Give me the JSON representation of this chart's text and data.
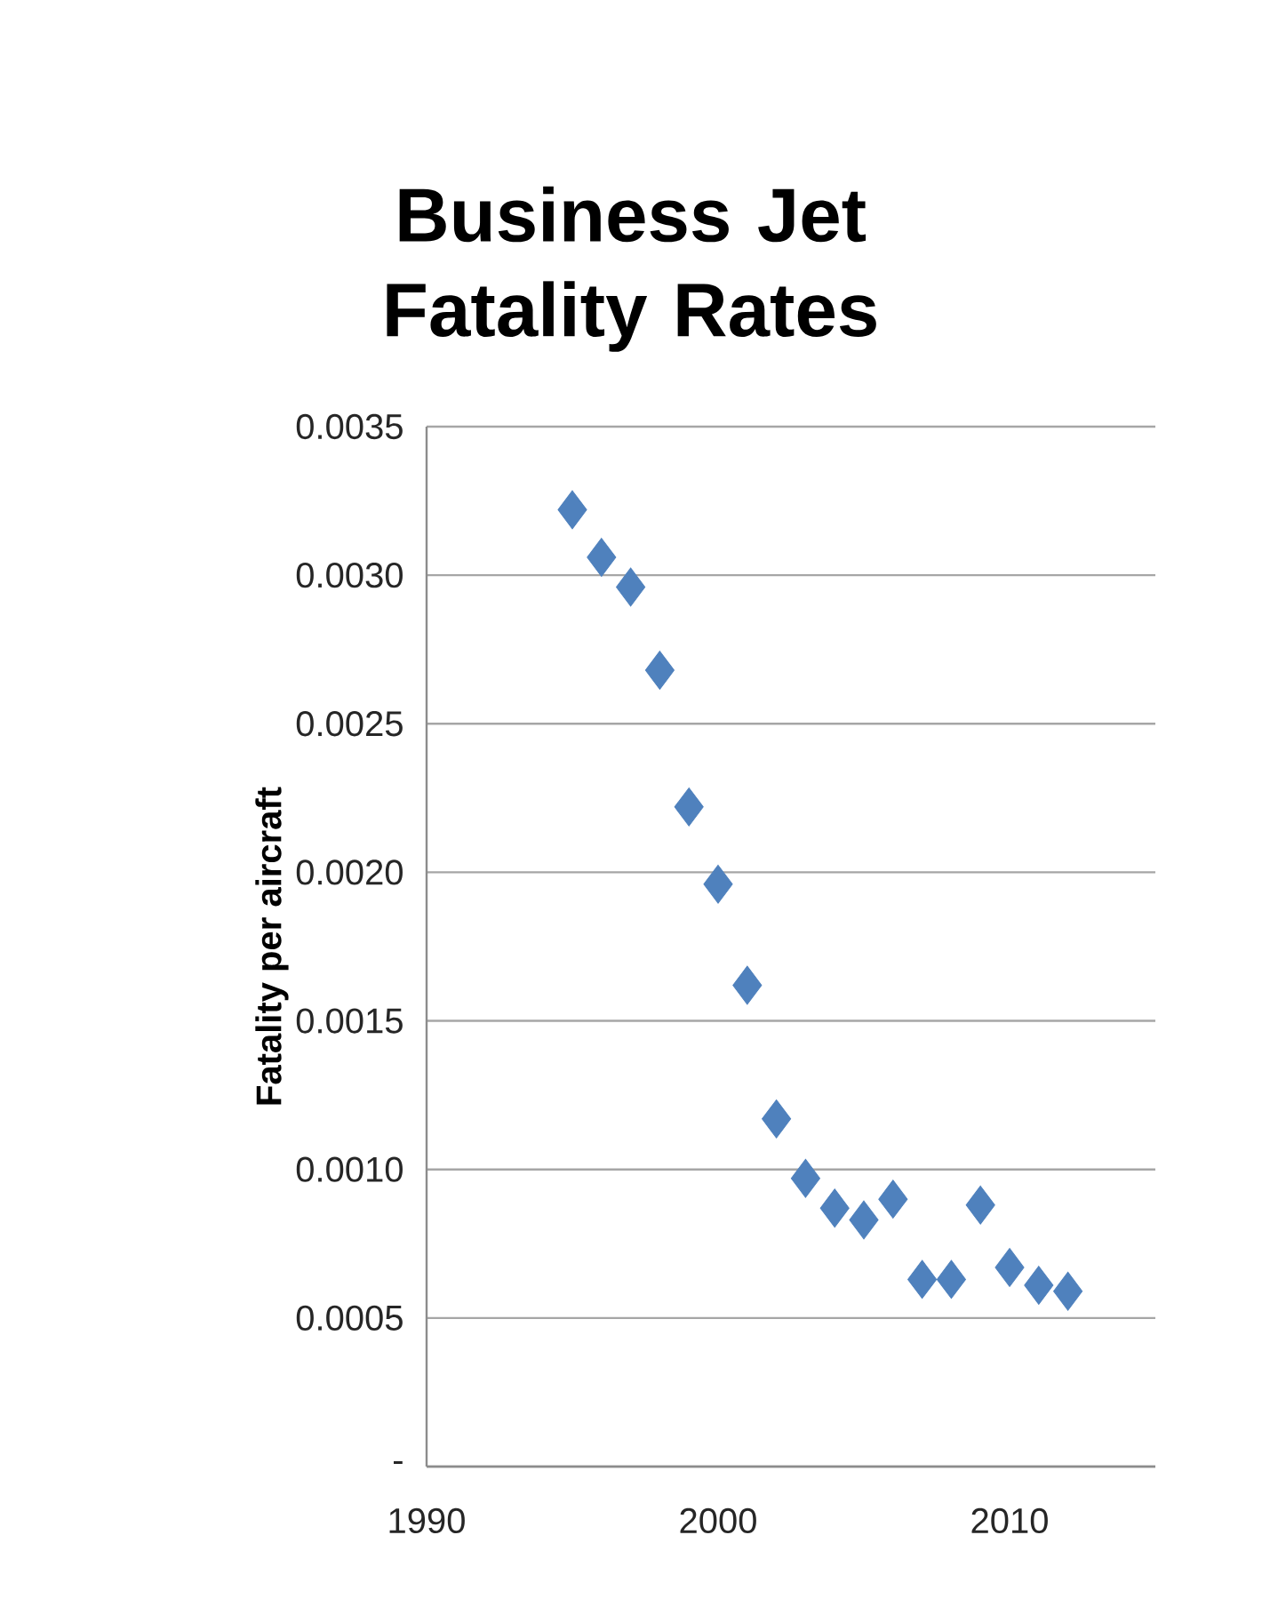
{
  "chart_data": {
    "type": "scatter",
    "title": "Business Jet Fatality Rates",
    "ylabel": "Fatality per aircraft",
    "x": [
      1995,
      1996,
      1997,
      1998,
      1999,
      2000,
      2001,
      2002,
      2003,
      2004,
      2005,
      2006,
      2007,
      2008,
      2009,
      2010,
      2011,
      2012
    ],
    "values": [
      0.00322,
      0.00306,
      0.00296,
      0.00268,
      0.00222,
      0.00196,
      0.00162,
      0.00117,
      0.00097,
      0.00087,
      0.00083,
      0.0009,
      0.00063,
      0.00063,
      0.00088,
      0.00067,
      0.00061,
      0.00059
    ],
    "color": "#4f81bd",
    "marker": "diamond",
    "grid": "y",
    "xlim": [
      1990,
      2015
    ],
    "xticks": [
      1990,
      2000,
      2010
    ],
    "ylim": [
      0,
      0.0035
    ],
    "yticks": [
      {
        "value": 0,
        "label": "-"
      },
      {
        "value": 0.0005,
        "label": "0.0005"
      },
      {
        "value": 0.001,
        "label": "0.0010"
      },
      {
        "value": 0.0015,
        "label": "0.0015"
      },
      {
        "value": 0.002,
        "label": "0.0020"
      },
      {
        "value": 0.0025,
        "label": "0.0025"
      },
      {
        "value": 0.003,
        "label": "0.0030"
      },
      {
        "value": 0.0035,
        "label": "0.0035"
      }
    ]
  }
}
